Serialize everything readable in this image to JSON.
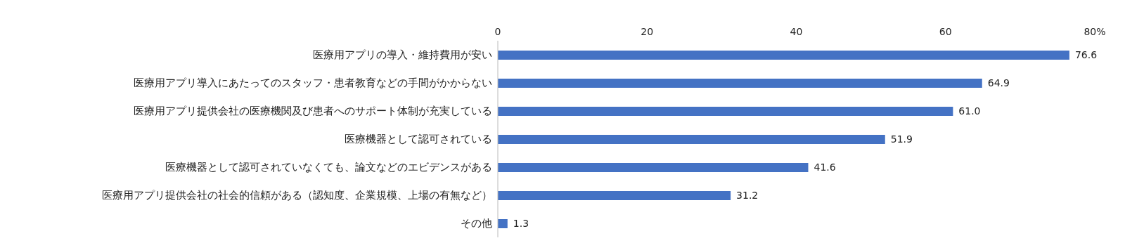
{
  "chart_data": {
    "type": "bar",
    "orientation": "horizontal",
    "categories": [
      "医療用アプリの導入・維持費用が安い",
      "医療用アプリ導入にあたってのスタッフ・患者教育などの手間がかからない",
      "医療用アプリ提供会社の医療機関及び患者へのサポート体制が充実している",
      "医療機器として認可されている",
      "医療機器として認可されていなくても、論文などのエビデンスがある",
      "医療用アプリ提供会社の社会的信頼がある（認知度、企業規模、上場の有無など）",
      "その他"
    ],
    "values": [
      76.6,
      64.9,
      61.0,
      51.9,
      41.6,
      31.2,
      1.3
    ],
    "value_labels": [
      "76.6",
      "64.9",
      "61.0",
      "51.9",
      "41.6",
      "31.2",
      "1.3"
    ],
    "color": "#4472c4",
    "xlim": [
      0,
      80
    ],
    "xticks": [
      0,
      20,
      40,
      60,
      {
        "value": 80,
        "label": "80%"
      }
    ]
  }
}
